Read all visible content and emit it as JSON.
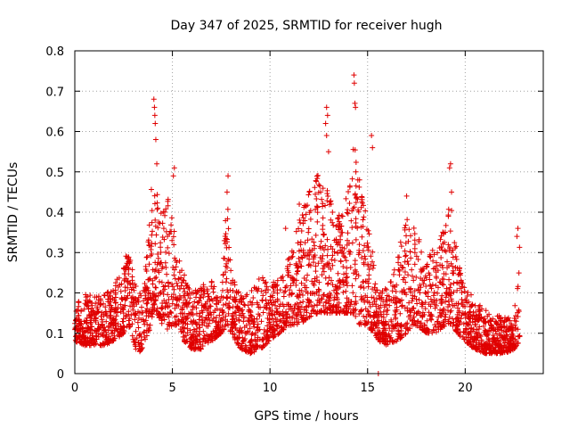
{
  "chart_data": {
    "type": "scatter",
    "title": "Day 347 of 2025, SRMTID for receiver hugh",
    "xlabel": "GPS time / hours",
    "ylabel": "SRMTID / TECUs",
    "xlim": [
      0,
      24
    ],
    "ylim": [
      0,
      0.8
    ],
    "x_ticks": [
      "0",
      "5",
      "10",
      "15",
      "20"
    ],
    "x_tick_values": [
      0,
      5,
      10,
      15,
      20
    ],
    "y_ticks": [
      "0",
      "0.1",
      "0.2",
      "0.3",
      "0.4",
      "0.5",
      "0.6",
      "0.7",
      "0.8"
    ],
    "y_tick_values": [
      0,
      0.1,
      0.2,
      0.3,
      0.4,
      0.5,
      0.6,
      0.7,
      0.8
    ],
    "grid": true,
    "marker": "plus",
    "color": "#e00000",
    "envelope": {
      "x": [
        0,
        0.5,
        1,
        1.5,
        2,
        2.5,
        2.7,
        3,
        3.2,
        3.5,
        3.8,
        4.0,
        4.2,
        4.5,
        4.8,
        5.0,
        5.3,
        5.6,
        6.0,
        6.5,
        7.0,
        7.5,
        7.8,
        8.0,
        8.5,
        9.0,
        9.5,
        10.0,
        10.5,
        11.0,
        11.5,
        12.0,
        12.5,
        13.0,
        13.5,
        14.0,
        14.3,
        14.6,
        15.0,
        15.3,
        15.6,
        16.0,
        16.5,
        17.0,
        17.5,
        18.0,
        18.5,
        19.0,
        19.3,
        19.6,
        20.0,
        20.5,
        21.0,
        21.5,
        22.0,
        22.5,
        22.8
      ],
      "low": [
        0.08,
        0.07,
        0.07,
        0.07,
        0.08,
        0.1,
        0.12,
        0.08,
        0.05,
        0.06,
        0.1,
        0.15,
        0.15,
        0.12,
        0.1,
        0.12,
        0.12,
        0.08,
        0.06,
        0.06,
        0.08,
        0.1,
        0.12,
        0.1,
        0.06,
        0.05,
        0.06,
        0.08,
        0.1,
        0.12,
        0.12,
        0.14,
        0.15,
        0.15,
        0.15,
        0.15,
        0.15,
        0.12,
        0.12,
        0.1,
        0.08,
        0.07,
        0.08,
        0.1,
        0.12,
        0.1,
        0.1,
        0.12,
        0.12,
        0.1,
        0.08,
        0.06,
        0.05,
        0.05,
        0.05,
        0.06,
        0.08
      ],
      "high": [
        0.18,
        0.2,
        0.19,
        0.2,
        0.22,
        0.28,
        0.32,
        0.25,
        0.2,
        0.22,
        0.35,
        0.55,
        0.45,
        0.4,
        0.45,
        0.38,
        0.3,
        0.25,
        0.2,
        0.22,
        0.24,
        0.2,
        0.45,
        0.25,
        0.2,
        0.2,
        0.25,
        0.22,
        0.24,
        0.3,
        0.38,
        0.45,
        0.5,
        0.45,
        0.4,
        0.45,
        0.6,
        0.48,
        0.42,
        0.28,
        0.2,
        0.22,
        0.28,
        0.4,
        0.35,
        0.32,
        0.3,
        0.38,
        0.45,
        0.28,
        0.22,
        0.18,
        0.16,
        0.15,
        0.14,
        0.14,
        0.35
      ],
      "points_per_hour": 140
    },
    "spikes": [
      {
        "x": 4.05,
        "y": 0.68
      },
      {
        "x": 4.08,
        "y": 0.66
      },
      {
        "x": 4.1,
        "y": 0.64
      },
      {
        "x": 4.12,
        "y": 0.62
      },
      {
        "x": 4.15,
        "y": 0.58
      },
      {
        "x": 4.2,
        "y": 0.52
      },
      {
        "x": 5.1,
        "y": 0.51
      },
      {
        "x": 5.05,
        "y": 0.49
      },
      {
        "x": 7.85,
        "y": 0.49
      },
      {
        "x": 7.8,
        "y": 0.45
      },
      {
        "x": 12.9,
        "y": 0.66
      },
      {
        "x": 12.95,
        "y": 0.64
      },
      {
        "x": 12.85,
        "y": 0.62
      },
      {
        "x": 12.9,
        "y": 0.59
      },
      {
        "x": 13.0,
        "y": 0.55
      },
      {
        "x": 14.3,
        "y": 0.74
      },
      {
        "x": 14.32,
        "y": 0.72
      },
      {
        "x": 14.35,
        "y": 0.67
      },
      {
        "x": 14.38,
        "y": 0.66
      },
      {
        "x": 15.2,
        "y": 0.59
      },
      {
        "x": 15.25,
        "y": 0.56
      },
      {
        "x": 14.4,
        "y": 0.5
      },
      {
        "x": 14.5,
        "y": 0.48
      },
      {
        "x": 19.25,
        "y": 0.52
      },
      {
        "x": 19.2,
        "y": 0.51
      },
      {
        "x": 19.3,
        "y": 0.45
      },
      {
        "x": 17.0,
        "y": 0.44
      },
      {
        "x": 11.5,
        "y": 0.42
      },
      {
        "x": 10.8,
        "y": 0.36
      },
      {
        "x": 22.7,
        "y": 0.36
      },
      {
        "x": 22.65,
        "y": 0.34
      },
      {
        "x": 15.55,
        "y": 0.0
      }
    ]
  }
}
